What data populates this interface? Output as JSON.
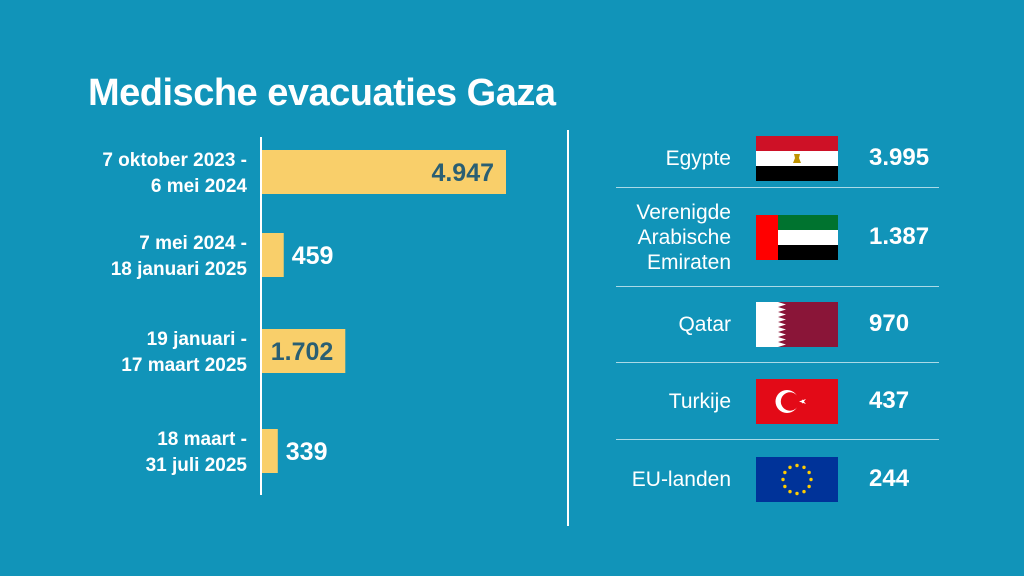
{
  "title": "Medische evacuaties Gaza",
  "colors": {
    "background": "#1194b9",
    "bar": "#f9cf6a",
    "text": "#ffffff",
    "bar_text": "#2a5f73"
  },
  "chart_data": [
    {
      "type": "bar",
      "orientation": "horizontal",
      "title": "Medische evacuaties Gaza",
      "categories": [
        [
          "7 oktober 2023 -",
          "6 mei 2024"
        ],
        [
          "7 mei 2024 -",
          "18 januari 2025"
        ],
        [
          "19 januari -",
          "17 maart 2025"
        ],
        [
          "18 maart -",
          "31 juli 2025"
        ]
      ],
      "values": [
        4947,
        459,
        1702,
        339
      ],
      "value_labels": [
        "4.947",
        "459",
        "1.702",
        "339"
      ],
      "xlim": [
        0,
        4947
      ]
    },
    {
      "type": "table",
      "rows": [
        {
          "country": [
            "Egypte"
          ],
          "flag_icon": "egypt-flag-icon",
          "value": 3995,
          "label": "3.995"
        },
        {
          "country": [
            "Verenigde",
            "Arabische",
            "Emiraten"
          ],
          "flag_icon": "uae-flag-icon",
          "value": 1387,
          "label": "1.387"
        },
        {
          "country": [
            "Qatar"
          ],
          "flag_icon": "qatar-flag-icon",
          "value": 970,
          "label": "970"
        },
        {
          "country": [
            "Turkije"
          ],
          "flag_icon": "turkey-flag-icon",
          "value": 437,
          "label": "437"
        },
        {
          "country": [
            "EU-landen"
          ],
          "flag_icon": "eu-flag-icon",
          "value": 244,
          "label": "244"
        }
      ]
    }
  ]
}
